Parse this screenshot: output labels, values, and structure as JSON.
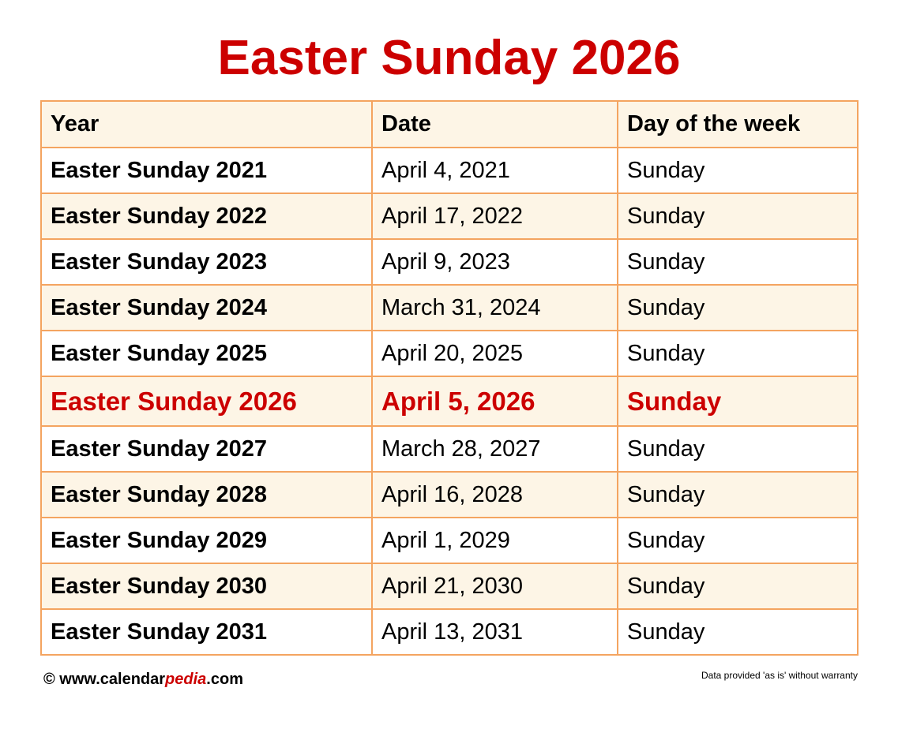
{
  "title": "Easter Sunday 2026",
  "table": {
    "headers": [
      "Year",
      "Date",
      "Day of the week"
    ],
    "rows": [
      {
        "year": "Easter Sunday 2021",
        "date": "April 4, 2021",
        "day": "Sunday"
      },
      {
        "year": "Easter Sunday 2022",
        "date": "April 17, 2022",
        "day": "Sunday"
      },
      {
        "year": "Easter Sunday 2023",
        "date": "April 9, 2023",
        "day": "Sunday"
      },
      {
        "year": "Easter Sunday 2024",
        "date": "March 31, 2024",
        "day": "Sunday"
      },
      {
        "year": "Easter Sunday 2025",
        "date": "April 20, 2025",
        "day": "Sunday"
      },
      {
        "year": "Easter Sunday 2026",
        "date": "April 5, 2026",
        "day": "Sunday",
        "highlighted": true
      },
      {
        "year": "Easter Sunday 2027",
        "date": "March 28, 2027",
        "day": "Sunday"
      },
      {
        "year": "Easter Sunday 2028",
        "date": "April 16, 2028",
        "day": "Sunday"
      },
      {
        "year": "Easter Sunday 2029",
        "date": "April 1, 2029",
        "day": "Sunday"
      },
      {
        "year": "Easter Sunday 2030",
        "date": "April 21, 2030",
        "day": "Sunday"
      },
      {
        "year": "Easter Sunday 2031",
        "date": "April 13, 2031",
        "day": "Sunday"
      }
    ]
  },
  "footer": {
    "copyright_prefix": "© www.calendar",
    "brand_highlight": "pedia",
    "suffix": ".com",
    "disclaimer": "Data provided 'as is' without warranty"
  },
  "colors": {
    "accent": "#cc0000",
    "border": "#f4a460",
    "alt_row": "#fdf5e6"
  }
}
